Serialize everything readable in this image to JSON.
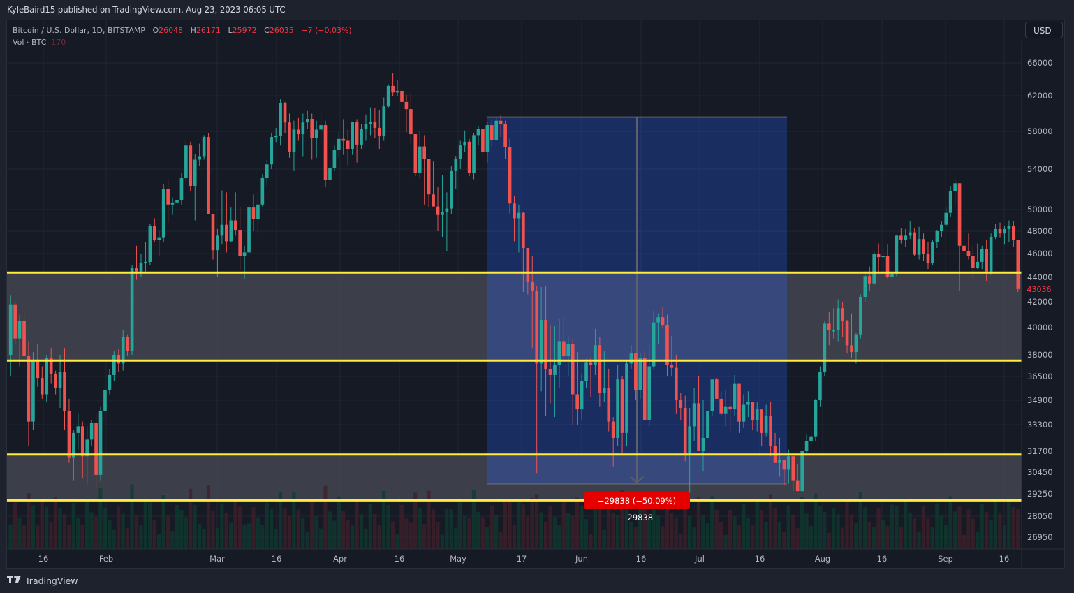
{
  "publisher_line": "KyleBaird15 published on TradingView.com, Aug 23, 2023 06:05 UTC",
  "legend": {
    "symbol": "Bitcoin / U.S. Dollar, 1D, BITSTAMP",
    "open_label": "O",
    "open": "26048",
    "high_label": "H",
    "high": "26171",
    "low_label": "L",
    "low": "25972",
    "close_label": "C",
    "close": "26035",
    "change": "−7 (−0.03%)",
    "volume_label": "Vol · BTC",
    "volume": "170"
  },
  "currency_button": "USD",
  "last_price_tag": "43036",
  "measure_label": "−29838 (−50.09%) −29838",
  "branding": "TradingView",
  "colors": {
    "up": "#26a69a",
    "down": "#ef5350",
    "support_line": "#ffeb3b",
    "zone_fill": "#434651",
    "measure_fill": "#2962ff",
    "measure_badge": "#e50000",
    "background": "#161a25"
  },
  "chart_data": {
    "type": "candlestick",
    "title": "Bitcoin / U.S. Dollar, 1D, BITSTAMP",
    "y_axis_ticks": [
      66000,
      62000,
      58000,
      54000,
      50000,
      48000,
      46000,
      44000,
      42000,
      40000,
      38000,
      36500,
      34900,
      33300,
      31700,
      30450,
      29250,
      28050,
      26950
    ],
    "x_axis_ticks": [
      "16",
      "Feb",
      "Mar",
      "16",
      "Apr",
      "16",
      "May",
      "17",
      "Jun",
      "16",
      "Jul",
      "16",
      "Aug",
      "16",
      "Sep",
      "16"
    ],
    "horizontal_lines": [
      44400,
      37600,
      31500,
      28900
    ],
    "zones": [
      {
        "from": 37600,
        "to": 44400
      },
      {
        "from": 28900,
        "to": 31500
      }
    ],
    "measure_box": {
      "from_price": 59600,
      "to_price": 29800,
      "change": -29838,
      "change_pct": -50.09
    },
    "last_price": 43036,
    "candles_ohlc": [
      [
        38000,
        42500,
        36500,
        41800
      ],
      [
        41800,
        42000,
        38800,
        39200
      ],
      [
        39200,
        41000,
        37200,
        40500
      ],
      [
        40500,
        41200,
        37000,
        37900
      ],
      [
        37900,
        39000,
        32000,
        33500
      ],
      [
        33500,
        38200,
        33000,
        37600
      ],
      [
        37600,
        38800,
        35800,
        36400
      ],
      [
        36400,
        37200,
        35000,
        35300
      ],
      [
        35300,
        38000,
        34800,
        37800
      ],
      [
        37800,
        38500,
        36000,
        36700
      ],
      [
        36700,
        36900,
        35300,
        35700
      ],
      [
        35700,
        38000,
        34400,
        36800
      ],
      [
        36800,
        38500,
        33000,
        34200
      ],
      [
        34200,
        35000,
        31000,
        31300
      ],
      [
        31300,
        33000,
        30000,
        32800
      ],
      [
        32800,
        34000,
        31800,
        33200
      ],
      [
        33200,
        33500,
        30100,
        31400
      ],
      [
        31400,
        33200,
        29800,
        32400
      ],
      [
        32400,
        33600,
        32000,
        33400
      ],
      [
        33400,
        34000,
        29600,
        30300
      ],
      [
        30300,
        34500,
        30000,
        34200
      ],
      [
        34200,
        35900,
        33500,
        35600
      ],
      [
        35600,
        37000,
        35300,
        36600
      ],
      [
        36600,
        38300,
        36200,
        38000
      ],
      [
        38000,
        38400,
        36800,
        37400
      ],
      [
        37400,
        39800,
        36900,
        39300
      ],
      [
        39300,
        39500,
        37900,
        38300
      ],
      [
        38300,
        45000,
        38000,
        44800
      ],
      [
        44800,
        46700,
        43800,
        44500
      ],
      [
        44500,
        46000,
        44000,
        45200
      ],
      [
        45200,
        47000,
        44500,
        45300
      ],
      [
        45300,
        48700,
        45000,
        48500
      ],
      [
        48500,
        49200,
        47000,
        47200
      ],
      [
        47200,
        48000,
        45800,
        47400
      ],
      [
        47400,
        52500,
        47000,
        52000
      ],
      [
        52000,
        53000,
        48800,
        50500
      ],
      [
        50500,
        51200,
        49500,
        50700
      ],
      [
        50700,
        52000,
        49500,
        50900
      ],
      [
        50900,
        53600,
        50500,
        53100
      ],
      [
        53100,
        57000,
        52800,
        56500
      ],
      [
        56500,
        56900,
        51800,
        52300
      ],
      [
        52300,
        55600,
        49000,
        55000
      ],
      [
        55000,
        56700,
        54300,
        55300
      ],
      [
        55300,
        57600,
        55000,
        57400
      ],
      [
        57400,
        57800,
        50000,
        49600
      ],
      [
        49600,
        48500,
        45500,
        46300
      ],
      [
        46300,
        48200,
        44000,
        47600
      ],
      [
        47600,
        51900,
        46800,
        48600
      ],
      [
        48600,
        51700,
        46100,
        47100
      ],
      [
        47100,
        50200,
        47000,
        49000
      ],
      [
        49000,
        51700,
        47600,
        48100
      ],
      [
        48100,
        50300,
        44600,
        45800
      ],
      [
        45800,
        46700,
        43900,
        46100
      ],
      [
        46100,
        50500,
        45800,
        50200
      ],
      [
        50200,
        51500,
        48000,
        49100
      ],
      [
        49100,
        51600,
        47900,
        50500
      ],
      [
        50500,
        53500,
        50300,
        53100
      ],
      [
        53100,
        55000,
        52400,
        54500
      ],
      [
        54500,
        57800,
        54000,
        57400
      ],
      [
        57400,
        58400,
        56800,
        57500
      ],
      [
        57500,
        61600,
        56500,
        61200
      ],
      [
        61200,
        61300,
        57800,
        59000
      ],
      [
        59000,
        60000,
        55200,
        55800
      ],
      [
        55800,
        59200,
        53800,
        58200
      ],
      [
        58200,
        59500,
        57000,
        57700
      ],
      [
        57700,
        60000,
        55300,
        59000
      ],
      [
        59000,
        60300,
        58300,
        59400
      ],
      [
        59400,
        60000,
        55000,
        57300
      ],
      [
        57300,
        59200,
        55200,
        58200
      ],
      [
        58200,
        60000,
        56600,
        58700
      ],
      [
        58700,
        59200,
        52200,
        52900
      ],
      [
        52900,
        55000,
        51800,
        54100
      ],
      [
        54100,
        56500,
        53800,
        56000
      ],
      [
        56000,
        57900,
        55200,
        57200
      ],
      [
        57200,
        59300,
        55500,
        57000
      ],
      [
        57000,
        58200,
        54400,
        56100
      ],
      [
        56100,
        58900,
        55500,
        59100
      ],
      [
        59100,
        59300,
        54700,
        56600
      ],
      [
        56600,
        58800,
        56100,
        58300
      ],
      [
        58300,
        59900,
        57000,
        58800
      ],
      [
        58800,
        60700,
        57600,
        59100
      ],
      [
        59100,
        60600,
        57300,
        58400
      ],
      [
        58400,
        60400,
        56100,
        57500
      ],
      [
        57500,
        61800,
        57000,
        60800
      ],
      [
        60800,
        63400,
        60600,
        63200
      ],
      [
        63200,
        64800,
        62000,
        62400
      ],
      [
        62400,
        63900,
        62000,
        62600
      ],
      [
        62600,
        63500,
        57500,
        61300
      ],
      [
        61300,
        62100,
        57900,
        60500
      ],
      [
        60500,
        62300,
        56500,
        57700
      ],
      [
        57700,
        57600,
        53300,
        53600
      ],
      [
        53600,
        58100,
        53100,
        56400
      ],
      [
        56400,
        57600,
        50500,
        55100
      ],
      [
        55100,
        55000,
        50200,
        51500
      ],
      [
        51500,
        54800,
        51000,
        50300
      ],
      [
        50300,
        52200,
        48000,
        49500
      ],
      [
        49500,
        53400,
        47500,
        49800
      ],
      [
        49800,
        51700,
        46200,
        50100
      ],
      [
        50100,
        54300,
        49600,
        53800
      ],
      [
        53800,
        55400,
        52000,
        55100
      ],
      [
        55100,
        57000,
        54000,
        56500
      ],
      [
        56500,
        58100,
        55800,
        56900
      ],
      [
        56900,
        57200,
        53300,
        53600
      ],
      [
        53600,
        57800,
        53000,
        57600
      ],
      [
        57600,
        58600,
        56500,
        58300
      ],
      [
        58300,
        58000,
        55400,
        55800
      ],
      [
        55800,
        59000,
        54700,
        58700
      ],
      [
        58700,
        59300,
        56400,
        57100
      ],
      [
        57100,
        59500,
        57000,
        59200
      ],
      [
        59200,
        59900,
        57400,
        58800
      ],
      [
        58800,
        59200,
        55100,
        56300
      ],
      [
        56300,
        57200,
        49600,
        50600
      ],
      [
        50600,
        51300,
        47100,
        49200
      ],
      [
        49200,
        50500,
        46100,
        49700
      ],
      [
        49700,
        49800,
        42800,
        46500
      ],
      [
        46500,
        44700,
        42600,
        43600
      ],
      [
        43600,
        45800,
        38500,
        42900
      ],
      [
        42900,
        43300,
        30400,
        37400
      ],
      [
        37400,
        43200,
        35500,
        40600
      ],
      [
        40600,
        43300,
        33900,
        37000
      ],
      [
        37000,
        40200,
        34700,
        36600
      ],
      [
        36600,
        40100,
        33800,
        37300
      ],
      [
        37300,
        40700,
        35700,
        39000
      ],
      [
        39000,
        40900,
        37700,
        37900
      ],
      [
        37900,
        39300,
        36500,
        38800
      ],
      [
        38800,
        39200,
        33300,
        35300
      ],
      [
        35300,
        38200,
        33300,
        34300
      ],
      [
        34300,
        36700,
        33600,
        36200
      ],
      [
        36200,
        37700,
        35700,
        37500
      ],
      [
        37500,
        37800,
        35100,
        37300
      ],
      [
        37300,
        39900,
        36600,
        38700
      ],
      [
        38700,
        39300,
        34500,
        35400
      ],
      [
        35400,
        38300,
        34800,
        35700
      ],
      [
        35700,
        37000,
        32900,
        33500
      ],
      [
        33500,
        33800,
        30800,
        32500
      ],
      [
        32500,
        37300,
        32000,
        36300
      ],
      [
        36300,
        36500,
        31600,
        32800
      ],
      [
        32800,
        37600,
        32000,
        37400
      ],
      [
        37400,
        38700,
        37000,
        38100
      ],
      [
        38100,
        38000,
        34900,
        35600
      ],
      [
        35600,
        38100,
        35000,
        37800
      ],
      [
        37800,
        38300,
        33800,
        33600
      ],
      [
        33600,
        38700,
        33200,
        37200
      ],
      [
        37200,
        41300,
        37000,
        40400
      ],
      [
        40400,
        41100,
        38800,
        40800
      ],
      [
        40800,
        41600,
        40000,
        40200
      ],
      [
        40200,
        41000,
        36500,
        37300
      ],
      [
        37300,
        39400,
        36500,
        37100
      ],
      [
        37100,
        38000,
        34000,
        34900
      ],
      [
        34900,
        35400,
        33600,
        34400
      ],
      [
        34400,
        35200,
        31100,
        31600
      ],
      [
        31600,
        34400,
        29300,
        33200
      ],
      [
        33200,
        35700,
        32300,
        34700
      ],
      [
        34700,
        36500,
        31800,
        31700
      ],
      [
        31700,
        34900,
        30500,
        32500
      ],
      [
        32500,
        34200,
        32600,
        34200
      ],
      [
        34200,
        35400,
        33900,
        36300
      ],
      [
        36300,
        36400,
        35100,
        35000
      ],
      [
        35000,
        35500,
        33900,
        34000
      ],
      [
        34000,
        35600,
        33200,
        34500
      ],
      [
        34500,
        35900,
        32800,
        34300
      ],
      [
        34300,
        36600,
        33900,
        36000
      ],
      [
        36000,
        36000,
        32800,
        33500
      ],
      [
        33500,
        35300,
        33100,
        34600
      ],
      [
        34600,
        35500,
        33800,
        34800
      ],
      [
        34800,
        34500,
        33000,
        33600
      ],
      [
        33600,
        34800,
        32900,
        34300
      ],
      [
        34300,
        33500,
        32000,
        32800
      ],
      [
        32800,
        34600,
        32600,
        33900
      ],
      [
        33900,
        34800,
        31400,
        32000
      ],
      [
        32000,
        32800,
        31400,
        31000
      ],
      [
        31000,
        32500,
        30200,
        31200
      ],
      [
        31200,
        30600,
        29700,
        30600
      ],
      [
        30600,
        31800,
        29800,
        31400
      ],
      [
        31400,
        30900,
        29400,
        30000
      ],
      [
        30000,
        30900,
        29600,
        29400
      ],
      [
        29400,
        31600,
        29300,
        31700
      ],
      [
        31700,
        32700,
        31600,
        32300
      ],
      [
        32300,
        33600,
        31800,
        32600
      ],
      [
        32600,
        35000,
        32300,
        34900
      ],
      [
        34900,
        37200,
        34500,
        36800
      ],
      [
        36800,
        40500,
        36500,
        40300
      ],
      [
        40300,
        41200,
        38700,
        39800
      ],
      [
        39800,
        41500,
        39200,
        39800
      ],
      [
        39800,
        42200,
        39000,
        41500
      ],
      [
        41500,
        42000,
        39300,
        40500
      ],
      [
        40500,
        40600,
        38100,
        38700
      ],
      [
        38700,
        41100,
        37800,
        38200
      ],
      [
        38200,
        39600,
        37400,
        39500
      ],
      [
        39500,
        42600,
        39200,
        42400
      ],
      [
        42400,
        44500,
        42000,
        44100
      ],
      [
        44100,
        44900,
        42900,
        43500
      ],
      [
        43500,
        46200,
        43400,
        46000
      ],
      [
        46000,
        46900,
        44500,
        45700
      ],
      [
        45700,
        46600,
        44200,
        45800
      ],
      [
        45800,
        46800,
        43900,
        44000
      ],
      [
        44000,
        45500,
        43900,
        44300
      ],
      [
        44300,
        47700,
        44100,
        47600
      ],
      [
        47600,
        48300,
        46900,
        47200
      ],
      [
        47200,
        48200,
        46600,
        47600
      ],
      [
        47600,
        48900,
        47300,
        47900
      ],
      [
        47900,
        48300,
        45800,
        45900
      ],
      [
        45900,
        48400,
        45500,
        47300
      ],
      [
        47300,
        47800,
        45400,
        46000
      ],
      [
        46000,
        47000,
        44700,
        45200
      ],
      [
        45200,
        47200,
        45000,
        47000
      ],
      [
        47000,
        48100,
        46500,
        48000
      ],
      [
        48000,
        48900,
        47500,
        48600
      ],
      [
        48600,
        50200,
        48400,
        49700
      ],
      [
        49700,
        52300,
        49300,
        51800
      ],
      [
        51800,
        53000,
        50400,
        52600
      ],
      [
        52600,
        52600,
        42900,
        46700
      ],
      [
        46700,
        47800,
        45400,
        46200
      ],
      [
        46200,
        47800,
        45500,
        45800
      ],
      [
        45800,
        46700,
        43900,
        44800
      ],
      [
        44800,
        46900,
        44700,
        45300
      ],
      [
        45300,
        46700,
        44700,
        46400
      ],
      [
        46400,
        47200,
        43700,
        44500
      ],
      [
        44500,
        47800,
        44200,
        47500
      ],
      [
        47500,
        48700,
        47300,
        48200
      ],
      [
        48200,
        48800,
        47400,
        47800
      ],
      [
        47800,
        48500,
        46800,
        48200
      ],
      [
        48200,
        49000,
        47000,
        48500
      ],
      [
        48500,
        48900,
        46600,
        47200
      ],
      [
        47200,
        46600,
        42800,
        43036
      ]
    ]
  }
}
